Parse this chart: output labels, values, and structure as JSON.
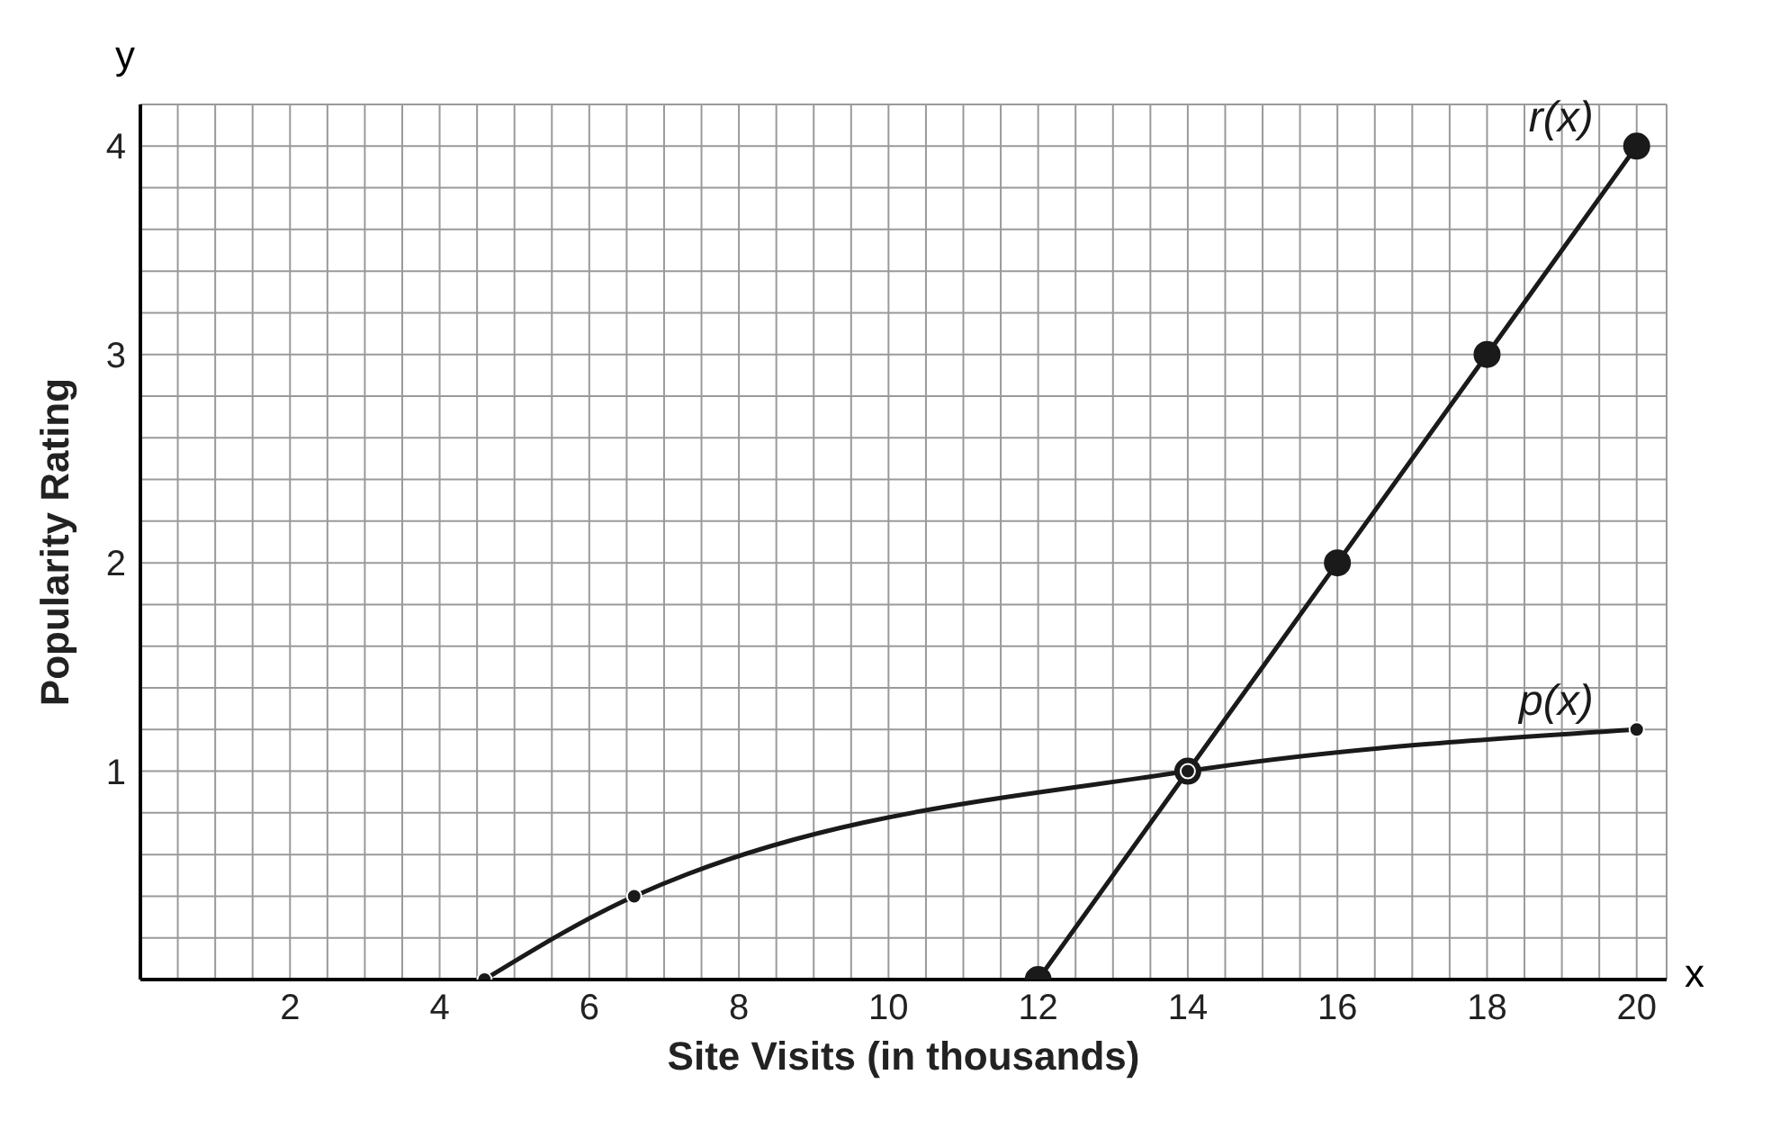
{
  "chart_data": {
    "type": "line",
    "xlabel": "Site Visits (in thousands)",
    "ylabel": "Popularity Rating",
    "annotations": [
      "x",
      "y"
    ],
    "xlim": [
      0,
      20.4
    ],
    "ylim": [
      0,
      4.2
    ],
    "xticks": [
      {
        "value": 0,
        "label": null
      },
      {
        "value": 0.5,
        "label": null
      },
      {
        "value": 1,
        "label": null
      },
      {
        "value": 1.5,
        "label": null
      },
      2,
      {
        "value": 2.5,
        "label": null
      },
      {
        "value": 3,
        "label": null
      },
      {
        "value": 3.5,
        "label": null
      },
      4,
      {
        "value": 4.5,
        "label": null
      },
      {
        "value": 5,
        "label": null
      },
      {
        "value": 5.5,
        "label": null
      },
      6,
      {
        "value": 6.5,
        "label": null
      },
      {
        "value": 7,
        "label": null
      },
      {
        "value": 7.5,
        "label": null
      },
      8,
      {
        "value": 8.5,
        "label": null
      },
      {
        "value": 9,
        "label": null
      },
      {
        "value": 9.5,
        "label": null
      },
      10,
      {
        "value": 10.5,
        "label": null
      },
      {
        "value": 11,
        "label": null
      },
      {
        "value": 11.5,
        "label": null
      },
      12,
      {
        "value": 12.5,
        "label": null
      },
      {
        "value": 13,
        "label": null
      },
      {
        "value": 13.5,
        "label": null
      },
      14,
      {
        "value": 14.5,
        "label": null
      },
      {
        "value": 15,
        "label": null
      },
      {
        "value": 15.5,
        "label": null
      },
      16,
      {
        "value": 16.5,
        "label": null
      },
      {
        "value": 17,
        "label": null
      },
      {
        "value": 17.5,
        "label": null
      },
      18,
      {
        "value": 18.5,
        "label": null
      },
      {
        "value": 19,
        "label": null
      },
      {
        "value": 19.5,
        "label": null
      },
      20
    ],
    "yticks": [
      {
        "value": 0,
        "label": null
      },
      {
        "value": 0.2,
        "label": null
      },
      {
        "value": 0.4,
        "label": null
      },
      {
        "value": 0.6,
        "label": null
      },
      {
        "value": 0.8,
        "label": null
      },
      1,
      {
        "value": 1.2,
        "label": null
      },
      {
        "value": 1.4,
        "label": null
      },
      {
        "value": 1.6,
        "label": null
      },
      {
        "value": 1.8,
        "label": null
      },
      2,
      {
        "value": 2.2,
        "label": null
      },
      {
        "value": 2.4,
        "label": null
      },
      {
        "value": 2.6,
        "label": null
      },
      {
        "value": 2.8,
        "label": null
      },
      3,
      {
        "value": 3.2,
        "label": null
      },
      {
        "value": 3.4,
        "label": null
      },
      {
        "value": 3.6,
        "label": null
      },
      {
        "value": 3.8,
        "label": null
      },
      4,
      {
        "value": 4.2,
        "label": null
      }
    ],
    "grid": true,
    "marker": "circle",
    "legend": false,
    "series": [
      {
        "name": "r(x)",
        "color": "#1a1a1a",
        "x": [
          12,
          14,
          16,
          18,
          20
        ],
        "values": [
          0,
          1,
          2,
          3,
          4
        ]
      },
      {
        "name": "p(x)",
        "color": "#1a1a1a",
        "x": [
          4.6,
          6.6,
          14,
          20
        ],
        "values": [
          0,
          0.4,
          1,
          1.2
        ]
      }
    ]
  }
}
